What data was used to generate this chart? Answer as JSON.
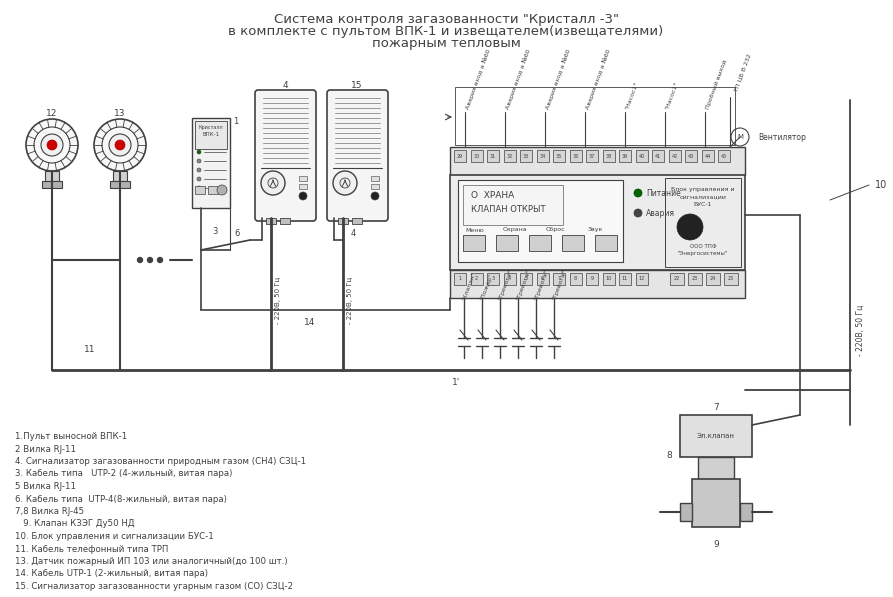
{
  "title_line1": "Система контроля загазованности \"Кристалл -3\"",
  "title_line2": "в комплекте с пультом ВПК-1 и извещателем(извещателями)",
  "title_line3": "пожарным тепловым",
  "background_color": "#ffffff",
  "line_color": "#404040",
  "text_color": "#404040",
  "legend_items": [
    "1.Пульт выносной ВПК-1",
    "2 Вилка RJ-11",
    "4. Сигнализатор загазованности природным газом (СН4) СЗЦ-1",
    "3. Кабель типа   UTP-2 (4-жильный, витая пара)",
    "5 Вилка RJ-11",
    "6. Кабель типа  UTP-4(8-жильный, витая пара)",
    "7,8 Вилка RJ-45",
    "   9. Клапан КЗЭГ Ду50 НД",
    "10. Блок управления и сигнализации БУС-1",
    "11. Кабель телефонный типа ТРП",
    "13. Датчик пожарный ИП 103 или аналогичный(до 100 шт.)",
    "14. Кабель UTP-1 (2-жильный, витая пара)",
    "15. Сигнализатор загазованности угарным газом (СО) СЗЦ-2"
  ]
}
